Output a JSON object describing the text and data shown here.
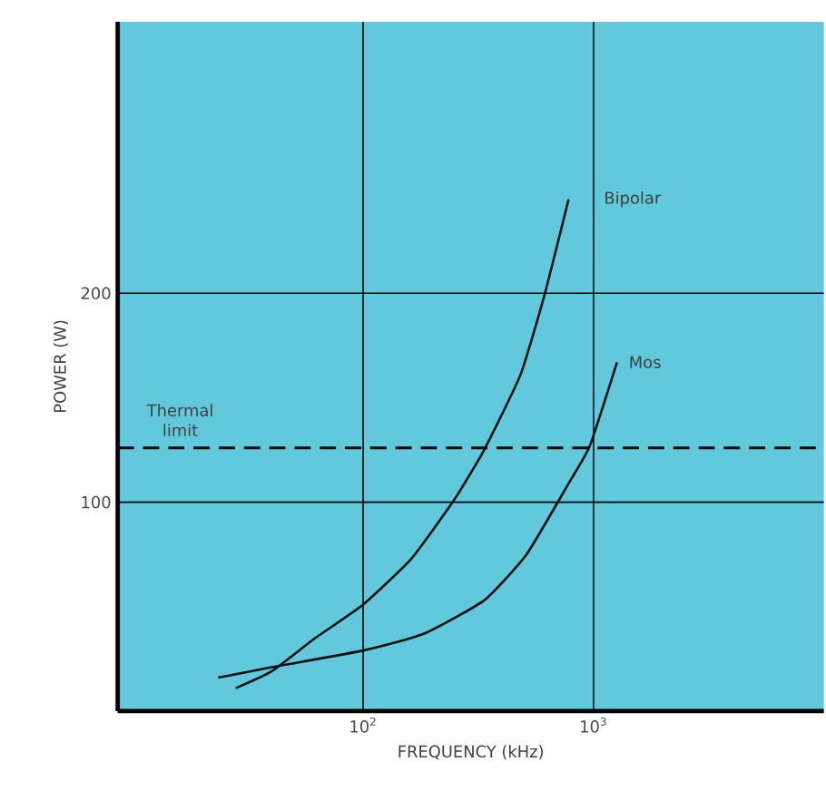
{
  "chart_data": {
    "type": "line",
    "xlabel": "FREQUENCY (kHz)",
    "ylabel": "POWER (W)",
    "log": "x",
    "xlim": [
      8.6,
      10000
    ],
    "ylim": [
      0,
      330
    ],
    "xticks": [
      {
        "value": 100,
        "label": "10$^{2}$"
      },
      {
        "value": 1000,
        "label": "10$^{3}$"
      }
    ],
    "yticks": [
      100,
      200
    ],
    "grid": true,
    "marker": "none",
    "line_style": "solid",
    "series": [
      {
        "name": "Bipolar",
        "color": "#111111",
        "x": [
          28,
          40,
          62,
          100,
          162,
          248,
          335,
          482,
          612,
          780
        ],
        "values": [
          11,
          19,
          35,
          51,
          73,
          101,
          125,
          161,
          199,
          245
        ]
      },
      {
        "name": "Mos",
        "color": "#111111",
        "x": [
          23.5,
          40,
          100,
          183,
          335,
          512,
          780,
          964,
          1265
        ],
        "values": [
          16,
          21,
          29,
          37,
          53,
          75,
          109,
          127,
          167
        ]
      }
    ],
    "ref_lines": [
      {
        "axis": "y",
        "value": 126,
        "label": "Thermal limit",
        "line_style": "dashed"
      }
    ]
  }
}
